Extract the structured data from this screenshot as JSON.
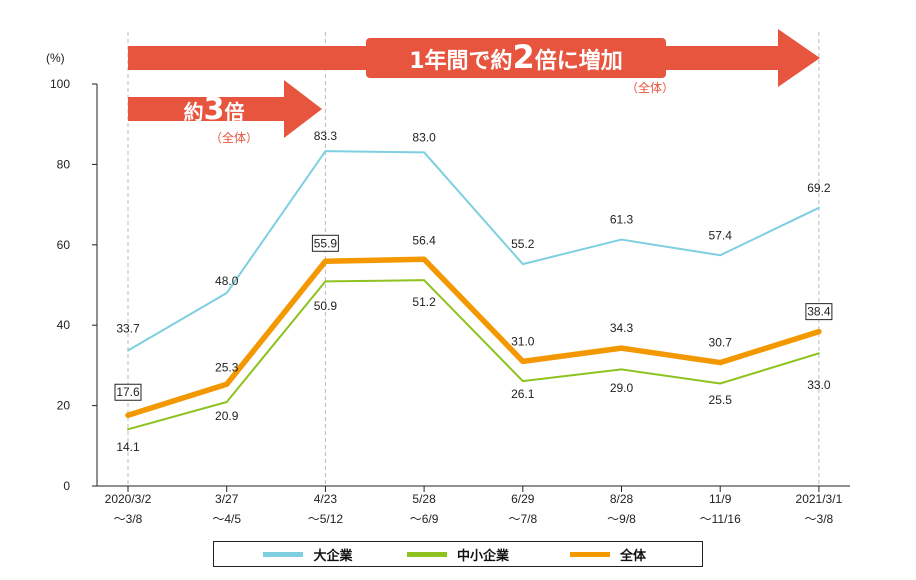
{
  "arrows": {
    "big": {
      "text_pre": "1年間で約",
      "text_num": "2",
      "text_post": "倍に増加",
      "note": "（全体）"
    },
    "small": {
      "text_pre": "約",
      "text_num": "3",
      "text_post": "倍",
      "note": "（全体）"
    },
    "color": "#e8553e"
  },
  "chart_data": {
    "type": "line",
    "ylabel": "(%)",
    "ylim": [
      0,
      100
    ],
    "yticks": [
      0,
      20,
      40,
      60,
      80,
      100
    ],
    "categories": [
      [
        "2020/3/2",
        "～3/8"
      ],
      [
        "3/27",
        "～4/5"
      ],
      [
        "4/23",
        "～5/12"
      ],
      [
        "5/28",
        "～6/9"
      ],
      [
        "6/29",
        "～7/8"
      ],
      [
        "8/28",
        "～9/8"
      ],
      [
        "11/9",
        "～11/16"
      ],
      [
        "2021/3/1",
        "～3/8"
      ]
    ],
    "series": [
      {
        "name": "大企業",
        "color": "#7ecfe0",
        "values": [
          33.7,
          48.0,
          83.3,
          83.0,
          55.2,
          61.3,
          57.4,
          69.2
        ],
        "labels": [
          "33.7",
          "48.0",
          "83.3",
          "83.0",
          "55.2",
          "61.3",
          "57.4",
          "69.2"
        ]
      },
      {
        "name": "中小企業",
        "color": "#8dc21f",
        "values": [
          14.1,
          20.9,
          50.9,
          51.2,
          26.1,
          29.0,
          25.5,
          33.0
        ],
        "labels": [
          "14.1",
          "20.9",
          "50.9",
          "51.2",
          "26.1",
          "29.0",
          "25.5",
          "33.0"
        ]
      },
      {
        "name": "全体",
        "color": "#f39800",
        "values": [
          17.6,
          25.3,
          55.9,
          56.4,
          31.0,
          34.3,
          30.7,
          38.4
        ],
        "labels": [
          "17.6",
          "25.3",
          "55.9",
          "56.4",
          "31.0",
          "34.3",
          "30.7",
          "38.4"
        ],
        "boxed": [
          0,
          2,
          7
        ]
      }
    ],
    "legend": "bottom"
  }
}
